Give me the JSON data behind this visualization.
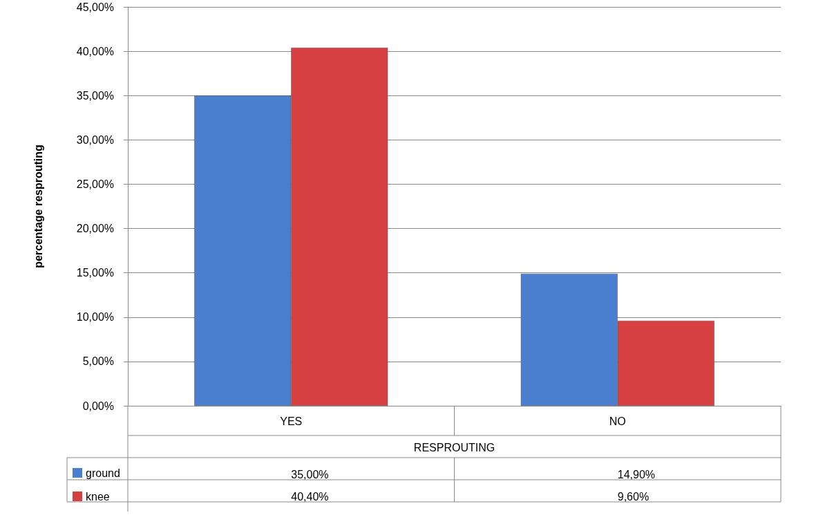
{
  "chart_data": {
    "type": "bar",
    "xlabel": "RESPROUTING",
    "ylabel": "percentage resprouting",
    "categories": [
      "YES",
      "NO"
    ],
    "series": [
      {
        "name": "ground",
        "color": "#4a7fd0",
        "values": [
          35.0,
          14.9
        ],
        "value_labels": [
          "35,00%",
          "14,90%"
        ]
      },
      {
        "name": "knee",
        "color": "#d64040",
        "values": [
          40.4,
          9.6
        ],
        "value_labels": [
          "40,40%",
          "9,60%"
        ]
      }
    ],
    "ylim": [
      0,
      45
    ],
    "yticks": [
      {
        "value": 0,
        "label": "0,00%"
      },
      {
        "value": 5,
        "label": "5,00%"
      },
      {
        "value": 10,
        "label": "10,00%"
      },
      {
        "value": 15,
        "label": "15,00%"
      },
      {
        "value": 20,
        "label": "20,00%"
      },
      {
        "value": 25,
        "label": "25,00%"
      },
      {
        "value": 30,
        "label": "30,00%"
      },
      {
        "value": 35,
        "label": "35,00%"
      },
      {
        "value": 40,
        "label": "40,00%"
      },
      {
        "value": 45,
        "label": "45,00%"
      }
    ],
    "grid": "y",
    "legend": "bottom left"
  }
}
